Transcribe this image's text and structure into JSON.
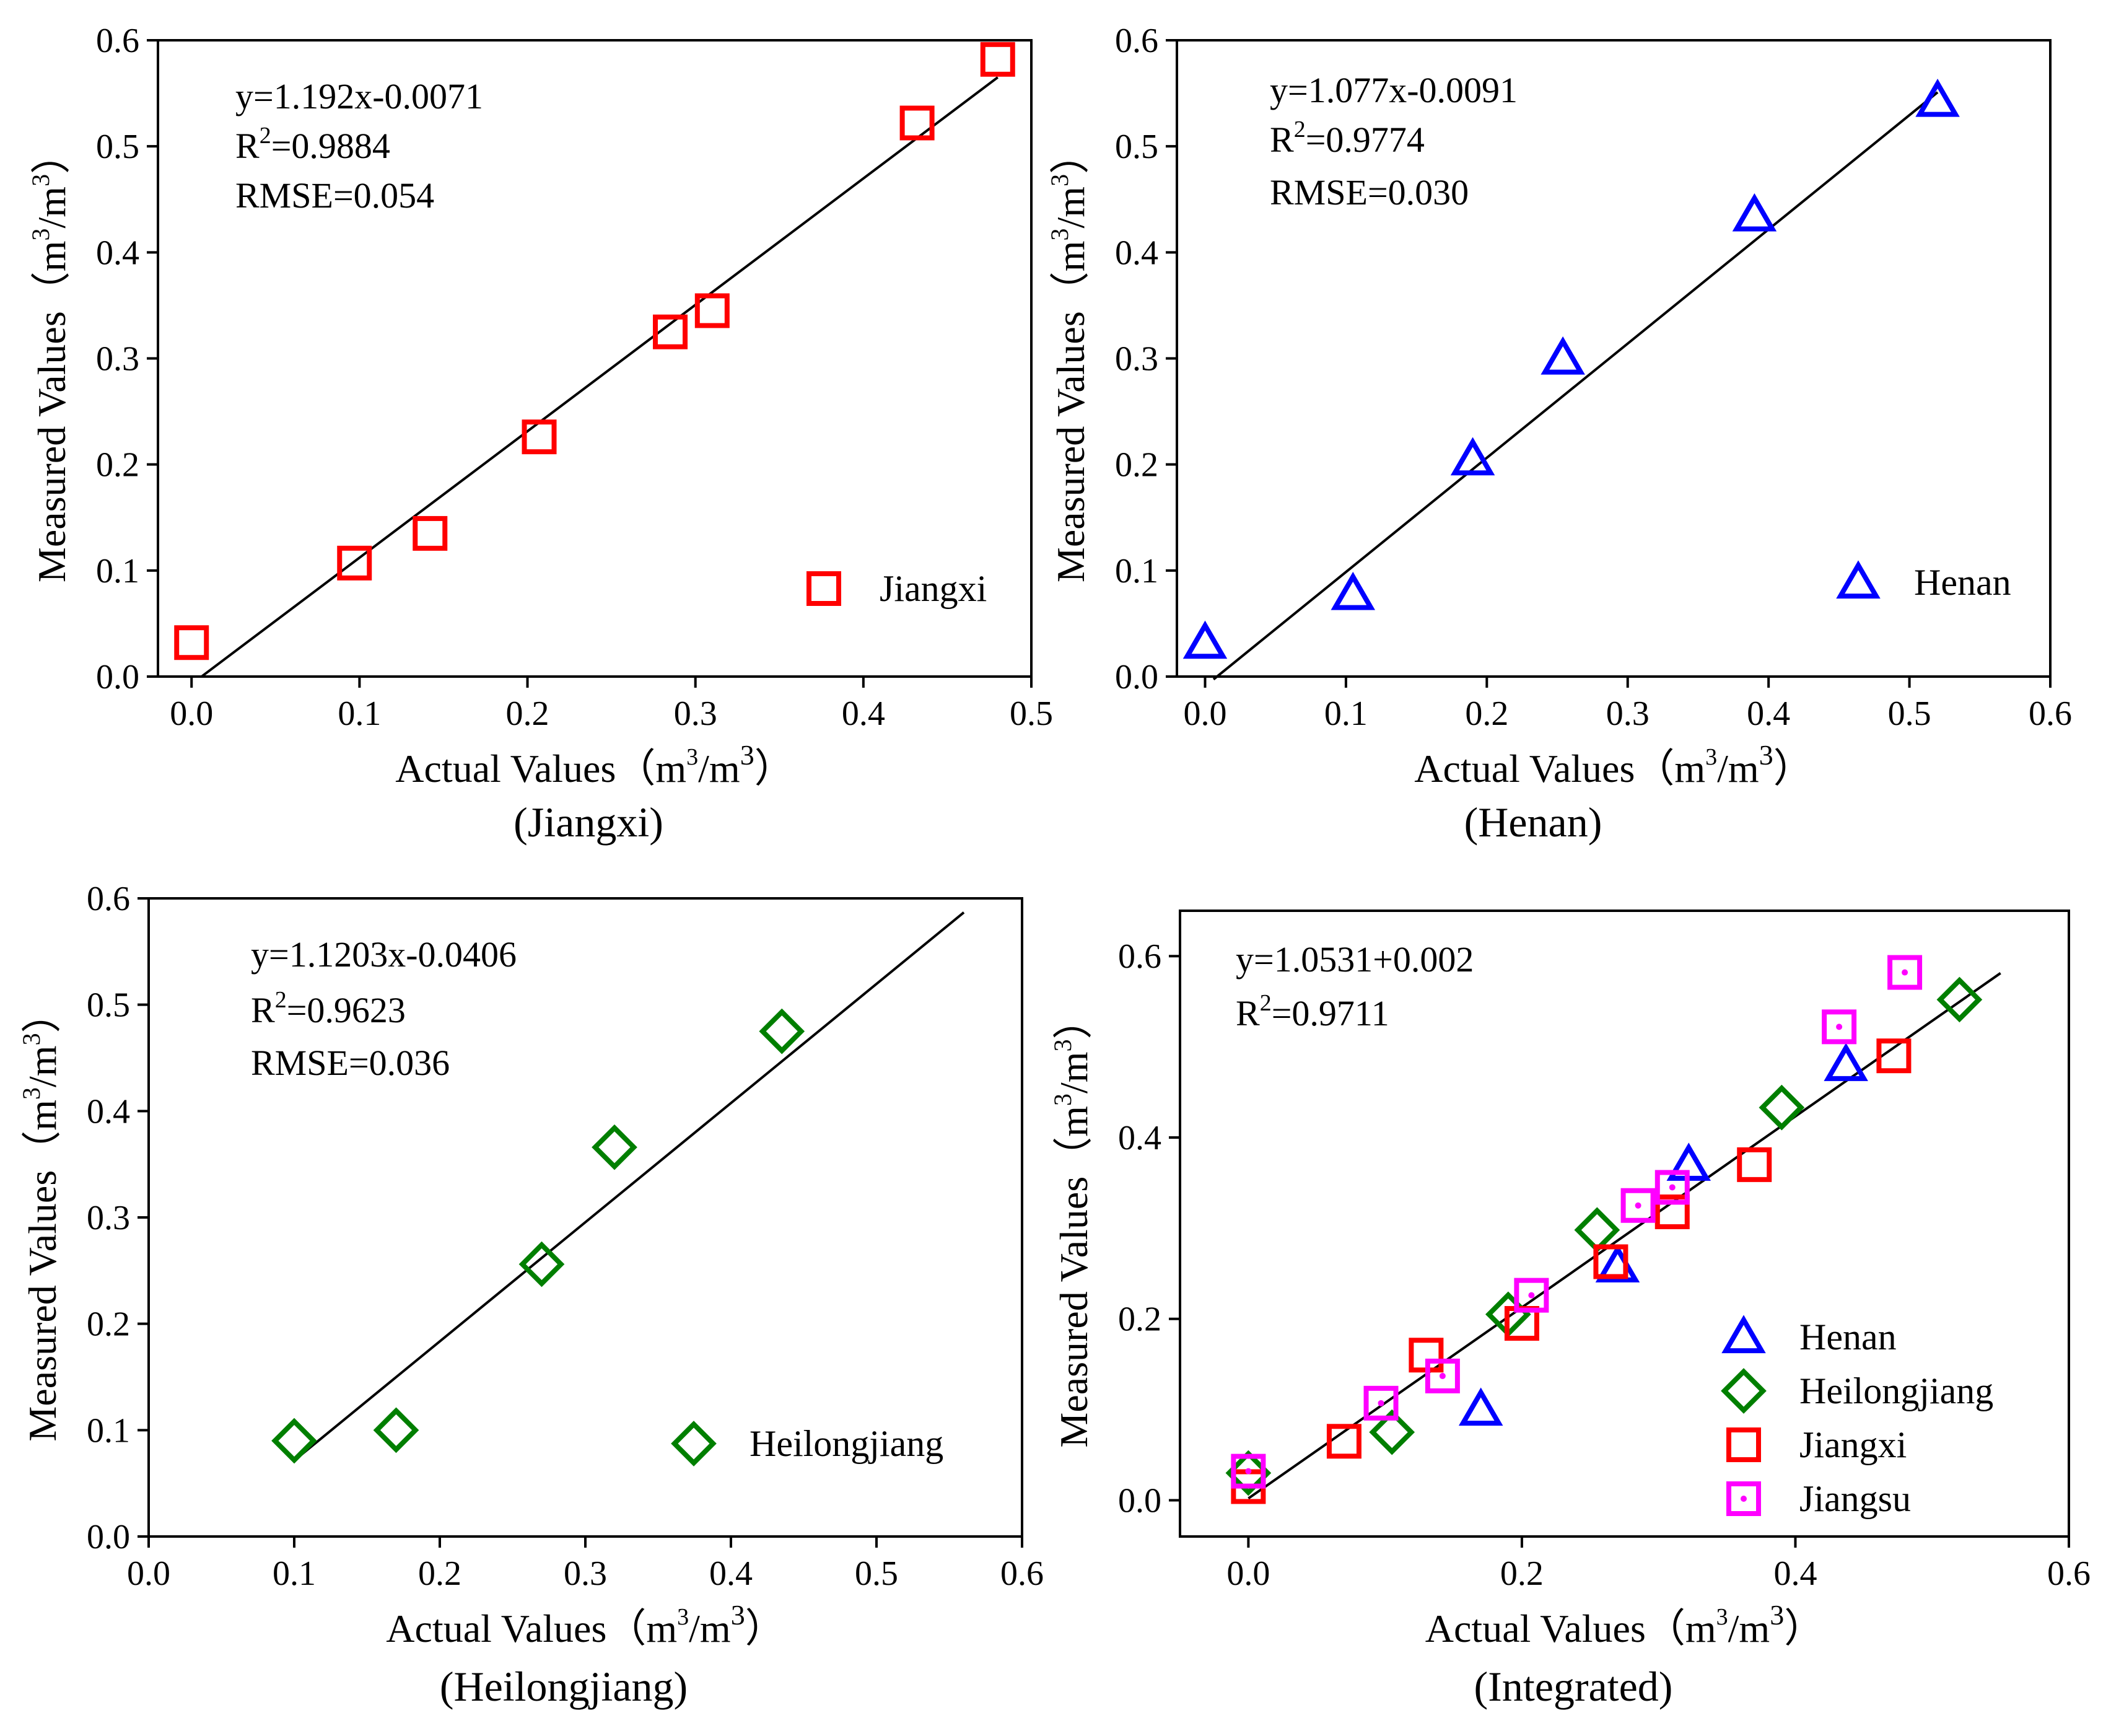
{
  "figure": {
    "layout": "2x2 grid of scatter plots with linear fits"
  },
  "chart_data": [
    {
      "id": "jiangxi",
      "type": "scatter",
      "caption": "(Jiangxi)",
      "xlabel": "Actual Values（m³/m³）",
      "xlabel_text": "Actual Values（m",
      "ylabel_text": "Measured Values（m",
      "ylabel": "Measured Values（m³/m³）",
      "xlim": [
        -0.02,
        0.5
      ],
      "ylim": [
        0.0,
        0.6
      ],
      "xticks": [
        0.0,
        0.1,
        0.2,
        0.3,
        0.4,
        0.5
      ],
      "xtick_labels": [
        "0.0",
        "0.1",
        "0.2",
        "0.3",
        "0.4",
        "0.5"
      ],
      "yticks": [
        0.0,
        0.1,
        0.2,
        0.3,
        0.4,
        0.5,
        0.6
      ],
      "ytick_labels": [
        "0.0",
        "0.1",
        "0.2",
        "0.3",
        "0.4",
        "0.5",
        "0.6"
      ],
      "annotation": {
        "equation": "y=1.192x-0.0071",
        "r2_label": "R",
        "r2_sup": "2",
        "r2_value": "=0.9884",
        "rmse": "RMSE=0.054"
      },
      "fit": {
        "slope": 1.192,
        "intercept": -0.0071,
        "x_range": [
          0.006,
          0.48
        ]
      },
      "legend_position": "bottom-right",
      "series": [
        {
          "name": "Jiangxi",
          "marker": "square",
          "color": "#ff0000",
          "x": [
            0.0,
            0.097,
            0.142,
            0.207,
            0.285,
            0.31,
            0.432,
            0.48
          ],
          "y": [
            0.032,
            0.107,
            0.135,
            0.226,
            0.325,
            0.345,
            0.522,
            0.582
          ]
        }
      ]
    },
    {
      "id": "henan",
      "type": "scatter",
      "caption": "(Henan)",
      "xlabel": "Actual Values（m³/m³）",
      "xlabel_text": "Actual Values（m",
      "ylabel_text": "Measured Values（m",
      "ylabel": "Measured Values（m³/m³）",
      "xlim": [
        -0.02,
        0.6
      ],
      "ylim": [
        0.0,
        0.6
      ],
      "xticks": [
        0.0,
        0.1,
        0.2,
        0.3,
        0.4,
        0.5,
        0.6
      ],
      "xtick_labels": [
        "0.0",
        "0.1",
        "0.2",
        "0.3",
        "0.4",
        "0.5",
        "0.6"
      ],
      "yticks": [
        0.0,
        0.1,
        0.2,
        0.3,
        0.4,
        0.5,
        0.6
      ],
      "ytick_labels": [
        "0.0",
        "0.1",
        "0.2",
        "0.3",
        "0.4",
        "0.5",
        "0.6"
      ],
      "annotation": {
        "equation": "y=1.077x-0.0091",
        "r2_label": "R",
        "r2_sup": "2",
        "r2_value": "=0.9774",
        "rmse": "RMSE=0.030"
      },
      "fit": {
        "slope": 1.077,
        "intercept": -0.0091,
        "x_range": [
          0.006,
          0.52
        ]
      },
      "legend_position": "bottom-right",
      "series": [
        {
          "name": "Henan",
          "marker": "triangle",
          "color": "#0000ff",
          "x": [
            0.0,
            0.105,
            0.19,
            0.254,
            0.39,
            0.52
          ],
          "y": [
            0.032,
            0.078,
            0.205,
            0.3,
            0.435,
            0.543
          ]
        }
      ]
    },
    {
      "id": "heilongjiang",
      "type": "scatter",
      "caption": "(Heilongjiang)",
      "xlabel": "Actual Values（m³/m³）",
      "xlabel_text": "Actual Values（m",
      "ylabel_text": "Measured Values（m",
      "ylabel": "Measured Values（m³/m³）",
      "xlim": [
        0.0,
        0.6
      ],
      "ylim": [
        0.0,
        0.6
      ],
      "xticks": [
        0.0,
        0.1,
        0.2,
        0.3,
        0.4,
        0.5,
        0.6
      ],
      "xtick_labels": [
        "0.0",
        "0.1",
        "0.2",
        "0.3",
        "0.4",
        "0.5",
        "0.6"
      ],
      "yticks": [
        0.0,
        0.1,
        0.2,
        0.3,
        0.4,
        0.5,
        0.6
      ],
      "ytick_labels": [
        "0.0",
        "0.1",
        "0.2",
        "0.3",
        "0.4",
        "0.5",
        "0.6"
      ],
      "annotation": {
        "equation": "y=1.1203x-0.0406",
        "r2_label": "R",
        "r2_sup": "2",
        "r2_value": "=0.9623",
        "rmse": "RMSE=0.036"
      },
      "fit": {
        "slope": 1.1203,
        "intercept": -0.0406,
        "x_range": [
          0.1,
          0.56
        ]
      },
      "legend_position": "bottom-right",
      "series": [
        {
          "name": "Heilongjiang",
          "marker": "diamond",
          "color": "#007f00",
          "x": [
            0.1,
            0.17,
            0.27,
            0.32,
            0.435
          ],
          "y": [
            0.09,
            0.1,
            0.256,
            0.366,
            0.475
          ]
        }
      ]
    },
    {
      "id": "integrated",
      "type": "scatter",
      "caption": "(Integrated)",
      "xlabel": "Actual Values（m³/m³）",
      "xlabel_text": "Actual Values（m",
      "ylabel_text": "Measured Values（m",
      "ylabel": "Measured Values（m³/m³）",
      "xlim": [
        -0.05,
        0.6
      ],
      "ylim": [
        -0.04,
        0.65
      ],
      "xticks": [
        0.0,
        0.2,
        0.4,
        0.6
      ],
      "xtick_labels": [
        "0.0",
        "0.2",
        "0.4",
        "0.6"
      ],
      "yticks": [
        0.0,
        0.2,
        0.4,
        0.6
      ],
      "ytick_labels": [
        "0.0",
        "0.2",
        "0.4",
        "0.6"
      ],
      "annotation": {
        "equation": "y=1.0531+0.002",
        "r2_label": "R",
        "r2_sup": "2",
        "r2_value": "=0.9711",
        "rmse": ""
      },
      "fit": {
        "slope": 1.0531,
        "intercept": 0.002,
        "x_range": [
          0.0,
          0.55
        ]
      },
      "legend_position": "bottom-right",
      "series": [
        {
          "name": "Henan",
          "marker": "triangle",
          "color": "#0000ff",
          "x": [
            0.17,
            0.27,
            0.322,
            0.437
          ],
          "y": [
            0.1,
            0.258,
            0.37,
            0.48
          ]
        },
        {
          "name": "Heilongjiang",
          "marker": "diamond",
          "color": "#007f00",
          "x": [
            0.0,
            0.105,
            0.19,
            0.255,
            0.39,
            0.52
          ],
          "y": [
            0.03,
            0.075,
            0.205,
            0.298,
            0.433,
            0.552
          ]
        },
        {
          "name": "Jiangxi",
          "marker": "square",
          "color": "#ff0000",
          "x": [
            0.0,
            0.07,
            0.13,
            0.2,
            0.265,
            0.31,
            0.37,
            0.472
          ],
          "y": [
            0.015,
            0.065,
            0.16,
            0.195,
            0.263,
            0.318,
            0.37,
            0.49
          ]
        },
        {
          "name": "Jiangsu",
          "marker": "square-dot",
          "color": "#ff00ff",
          "x": [
            0.0,
            0.097,
            0.142,
            0.207,
            0.285,
            0.31,
            0.432,
            0.48
          ],
          "y": [
            0.032,
            0.107,
            0.137,
            0.226,
            0.325,
            0.345,
            0.522,
            0.582
          ]
        }
      ]
    }
  ]
}
